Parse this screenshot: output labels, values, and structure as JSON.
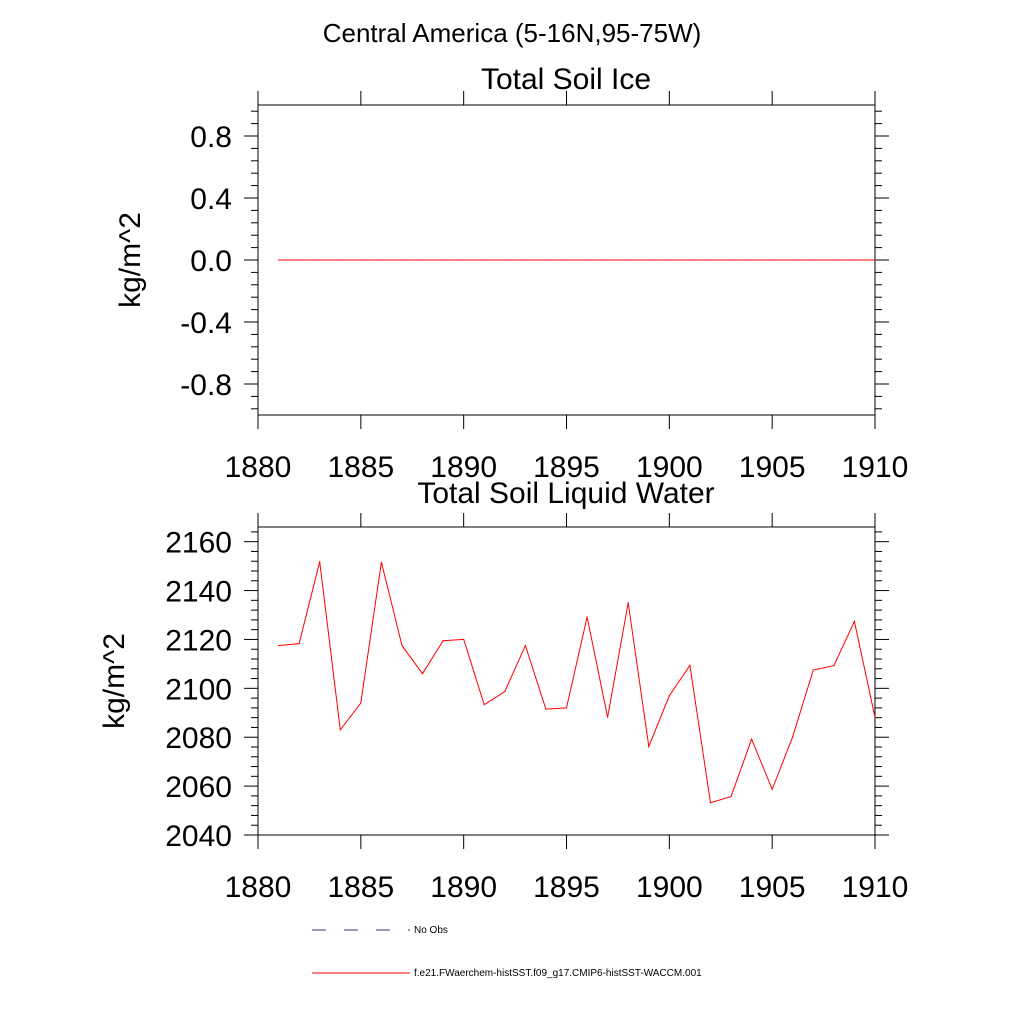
{
  "figure": {
    "suptitle": "Central America (5-16N,95-75W)"
  },
  "chart_data": [
    {
      "type": "line",
      "title": "Total Soil Ice",
      "ylabel": "kg/m^2",
      "xlabel": "",
      "xlim": [
        1880,
        1910
      ],
      "ylim": [
        -1.0,
        1.0
      ],
      "x_ticks": [
        1880,
        1885,
        1890,
        1895,
        1900,
        1905,
        1910
      ],
      "x_tick_labels": [
        "1880",
        "1885",
        "1890",
        "1895",
        "1900",
        "1905",
        "1910"
      ],
      "y_ticks": [
        -0.8,
        -0.4,
        0.0,
        0.4,
        0.8
      ],
      "y_tick_labels": [
        "-0.8",
        "-0.4",
        "0.0",
        "0.4",
        "0.8"
      ],
      "series": [
        {
          "color": "#ff0000",
          "x": [
            1881,
            1882,
            1883,
            1884,
            1885,
            1886,
            1887,
            1888,
            1889,
            1890,
            1891,
            1892,
            1893,
            1894,
            1895,
            1896,
            1897,
            1898,
            1899,
            1900,
            1901,
            1902,
            1903,
            1904,
            1905,
            1906,
            1907,
            1908,
            1909,
            1910
          ],
          "values": [
            0,
            0,
            0,
            0,
            0,
            0,
            0,
            0,
            0,
            0,
            0,
            0,
            0,
            0,
            0,
            0,
            0,
            0,
            0,
            0,
            0,
            0,
            0,
            0,
            0,
            0,
            0,
            0,
            0,
            0
          ]
        }
      ]
    },
    {
      "type": "line",
      "title": "Total Soil Liquid Water",
      "ylabel": "kg/m^2",
      "xlabel": "",
      "xlim": [
        1880,
        1910
      ],
      "ylim": [
        2040,
        2166
      ],
      "x_ticks": [
        1880,
        1885,
        1890,
        1895,
        1900,
        1905,
        1910
      ],
      "x_tick_labels": [
        "1880",
        "1885",
        "1890",
        "1895",
        "1900",
        "1905",
        "1910"
      ],
      "y_ticks": [
        2040,
        2060,
        2080,
        2100,
        2120,
        2140,
        2160
      ],
      "y_tick_labels": [
        "2040",
        "2060",
        "2080",
        "2100",
        "2120",
        "2140",
        "2160"
      ],
      "series": [
        {
          "color": "#ff0000",
          "x": [
            1881,
            1882,
            1883,
            1884,
            1885,
            1886,
            1887,
            1888,
            1889,
            1890,
            1891,
            1892,
            1893,
            1894,
            1895,
            1896,
            1897,
            1898,
            1899,
            1900,
            1901,
            1902,
            1903,
            1904,
            1905,
            1906,
            1907,
            1908,
            1909,
            1910
          ],
          "values": [
            2117.5,
            2118.3,
            2151.8,
            2083.0,
            2094.0,
            2151.6,
            2117.5,
            2106.0,
            2119.5,
            2120.0,
            2093.3,
            2098.7,
            2117.5,
            2091.5,
            2092.0,
            2129.2,
            2088.2,
            2135.0,
            2076.2,
            2096.9,
            2109.4,
            2053.2,
            2055.7,
            2079.2,
            2058.7,
            2080.2,
            2107.5,
            2109.3,
            2127.4,
            2088.1
          ]
        }
      ]
    }
  ],
  "legend": {
    "items": [
      {
        "label": "No Obs",
        "style": "dashed",
        "color": "#2b3a8a"
      },
      {
        "label": "f.e21.FWaerchem-histSST.f09_g17.CMIP6-histSST-WACCM.001",
        "style": "solid",
        "color": "#ff0000"
      }
    ]
  }
}
